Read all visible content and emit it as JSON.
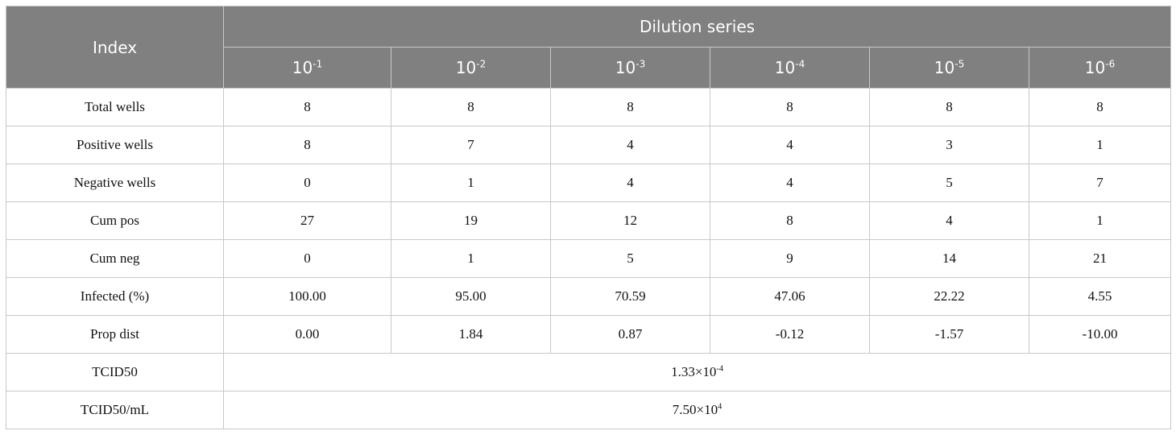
{
  "header": {
    "index": "Index",
    "group": "Dilution series",
    "dilutions": [
      {
        "base": "10",
        "exp": "-1"
      },
      {
        "base": "10",
        "exp": "-2"
      },
      {
        "base": "10",
        "exp": "-3"
      },
      {
        "base": "10",
        "exp": "-4"
      },
      {
        "base": "10",
        "exp": "-5"
      },
      {
        "base": "10",
        "exp": "-6"
      }
    ]
  },
  "table": {
    "rows": [
      {
        "label": "Total wells",
        "cells": [
          "8",
          "8",
          "8",
          "8",
          "8",
          "8"
        ]
      },
      {
        "label": "Positive wells",
        "cells": [
          "8",
          "7",
          "4",
          "4",
          "3",
          "1"
        ]
      },
      {
        "label": "Negative wells",
        "cells": [
          "0",
          "1",
          "4",
          "4",
          "5",
          "7"
        ]
      },
      {
        "label": "Cum pos",
        "cells": [
          "27",
          "19",
          "12",
          "8",
          "4",
          "1"
        ]
      },
      {
        "label": "Cum neg",
        "cells": [
          "0",
          "1",
          "5",
          "9",
          "14",
          "21"
        ]
      },
      {
        "label": "Infected (%)",
        "cells": [
          "100.00",
          "95.00",
          "70.59",
          "47.06",
          "22.22",
          "4.55"
        ]
      },
      {
        "label": "Prop dist",
        "cells": [
          "0.00",
          "1.84",
          "0.87",
          "-0.12",
          "-1.57",
          "-10.00"
        ]
      }
    ]
  },
  "summary": [
    {
      "label": "TCID50",
      "base": "1.33×10",
      "exp": "-4"
    },
    {
      "label": "TCID50/mL",
      "base": "7.50×10",
      "exp": "4"
    }
  ]
}
